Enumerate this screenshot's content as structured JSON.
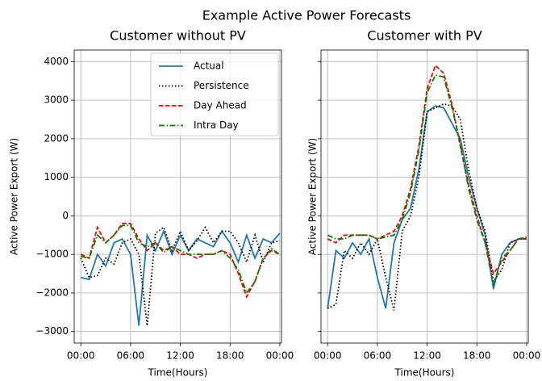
{
  "title": "Example Active Power Forecasts",
  "chart_data": [
    {
      "type": "line",
      "title": "Customer without PV",
      "xlabel": "Time(Hours)",
      "ylabel": "Active Power Export (W)",
      "x": [
        0,
        1,
        2,
        3,
        4,
        5,
        6,
        7,
        8,
        9,
        10,
        11,
        12,
        13,
        14,
        15,
        16,
        17,
        18,
        19,
        20,
        21,
        22,
        23,
        24
      ],
      "xlim": [
        -0.8,
        24.2
      ],
      "xticks": [
        {
          "value": 0,
          "label": "00:00"
        },
        {
          "value": 6,
          "label": "06:00"
        },
        {
          "value": 12,
          "label": "12:00"
        },
        {
          "value": 18,
          "label": "18:00"
        },
        {
          "value": 24,
          "label": "00:00"
        }
      ],
      "ylim": [
        -3300,
        4300
      ],
      "yticks": [
        {
          "value": -3000,
          "label": "−3000"
        },
        {
          "value": -2000,
          "label": "−2000"
        },
        {
          "value": -1000,
          "label": "−1000"
        },
        0,
        1000,
        2000,
        3000,
        4000
      ],
      "show_ytick_labels": true,
      "grid": true,
      "legend": "upper right",
      "series": [
        {
          "name": "Actual",
          "color": "#1f77b4",
          "linestyle": "solid",
          "values": [
            -1600,
            -1650,
            -1000,
            -1300,
            -700,
            -600,
            -1000,
            -2850,
            -500,
            -900,
            -400,
            -1000,
            -500,
            -900,
            -600,
            -700,
            -800,
            -400,
            -700,
            -1200,
            -500,
            -1100,
            -600,
            -700,
            -450
          ]
        },
        {
          "name": "Persistence",
          "color": "#000000",
          "linestyle": "dotted",
          "values": [
            -1100,
            -1600,
            -1550,
            -1100,
            -1250,
            -700,
            -600,
            -1000,
            -2850,
            -450,
            -300,
            -900,
            -400,
            -900,
            -650,
            -300,
            -700,
            -400,
            -400,
            -700,
            -1200,
            -500,
            -1200,
            -700,
            -650
          ]
        },
        {
          "name": "Day Ahead",
          "color": "#ff0000",
          "linestyle": "dashed",
          "values": [
            -1000,
            -1100,
            -300,
            -700,
            -500,
            -200,
            -200,
            -600,
            -900,
            -700,
            -900,
            -800,
            -1000,
            -1000,
            -1100,
            -1000,
            -1000,
            -900,
            -1000,
            -1500,
            -2100,
            -1700,
            -1100,
            -900,
            -1000
          ]
        },
        {
          "name": "Intra Day",
          "color": "#008000",
          "linestyle": "dashdot",
          "values": [
            -1050,
            -1100,
            -500,
            -700,
            -500,
            -250,
            -250,
            -700,
            -800,
            -700,
            -950,
            -800,
            -900,
            -1000,
            -1000,
            -1000,
            -1000,
            -900,
            -1100,
            -1400,
            -2000,
            -1700,
            -1100,
            -850,
            -1000
          ]
        }
      ]
    },
    {
      "type": "line",
      "title": "Customer with PV",
      "xlabel": "Time(Hours)",
      "ylabel": "Active Power Export (W)",
      "x": [
        0,
        1,
        2,
        3,
        4,
        5,
        6,
        7,
        8,
        9,
        10,
        11,
        12,
        13,
        14,
        15,
        16,
        17,
        18,
        19,
        20,
        21,
        22,
        23,
        24
      ],
      "xlim": [
        -0.8,
        24.2
      ],
      "xticks": [
        {
          "value": 0,
          "label": "00:00"
        },
        {
          "value": 6,
          "label": "06:00"
        },
        {
          "value": 12,
          "label": "12:00"
        },
        {
          "value": 18,
          "label": "18:00"
        },
        {
          "value": 24,
          "label": "00:00"
        }
      ],
      "ylim": [
        -3300,
        4300
      ],
      "yticks": [
        -3000,
        -2000,
        -1000,
        0,
        1000,
        2000,
        3000,
        4000
      ],
      "show_ytick_labels": false,
      "grid": true,
      "legend": "none",
      "series": [
        {
          "color": "#1f77b4",
          "linestyle": "solid",
          "values": [
            -2400,
            -900,
            -1100,
            -700,
            -1000,
            -600,
            -1600,
            -2400,
            -700,
            -100,
            200,
            1200,
            2700,
            2850,
            2800,
            2400,
            2000,
            1000,
            200,
            -500,
            -1900,
            -1000,
            -700,
            -600,
            -600
          ]
        },
        {
          "color": "#000000",
          "linestyle": "dotted",
          "values": [
            -2400,
            -2300,
            -900,
            -1100,
            -700,
            -1000,
            -600,
            -1600,
            -2450,
            -400,
            0,
            1000,
            2700,
            2800,
            2900,
            2850,
            2500,
            1200,
            200,
            -400,
            -1700,
            -1400,
            -700,
            -600,
            -600
          ]
        },
        {
          "color": "#ff0000",
          "linestyle": "dashed",
          "values": [
            -600,
            -700,
            -500,
            -500,
            -500,
            -500,
            -600,
            -500,
            -400,
            0,
            700,
            1800,
            3300,
            3900,
            3700,
            2900,
            1800,
            800,
            0,
            -700,
            -1500,
            -1200,
            -900,
            -600,
            -600
          ]
        },
        {
          "color": "#008000",
          "linestyle": "dashdot",
          "values": [
            -500,
            -600,
            -600,
            -500,
            -500,
            -500,
            -600,
            -550,
            -500,
            -100,
            600,
            1700,
            3200,
            3650,
            3600,
            2800,
            1900,
            700,
            -100,
            -700,
            -1800,
            -1100,
            -900,
            -600,
            -550
          ]
        }
      ]
    }
  ]
}
